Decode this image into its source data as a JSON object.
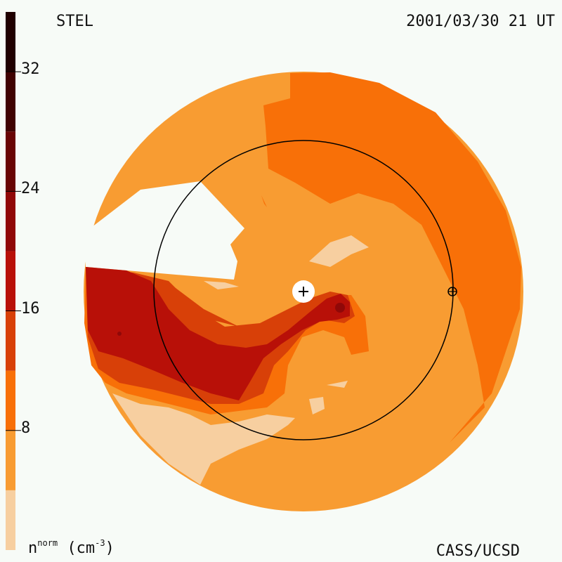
{
  "header": {
    "left_label": "STEL",
    "right_label": "2001/03/30 21 UT"
  },
  "footer": {
    "credit": "CASS/UCSD"
  },
  "colorbar": {
    "quantity": "n",
    "superscript": "norm",
    "unit_open": "(cm",
    "unit_exp": "-3",
    "unit_close": ")",
    "ticks": [
      "32",
      "24",
      "16",
      "8"
    ],
    "tick_values": [
      32,
      24,
      16,
      8
    ],
    "levels": [
      {
        "from": 0,
        "to": 4,
        "color": "#f7cfa0"
      },
      {
        "from": 4,
        "to": 8,
        "color": "#f89c32"
      },
      {
        "from": 8,
        "to": 12,
        "color": "#f87008"
      },
      {
        "from": 12,
        "to": 16,
        "color": "#d84008"
      },
      {
        "from": 16,
        "to": 20,
        "color": "#b81008"
      },
      {
        "from": 20,
        "to": 24,
        "color": "#900808"
      },
      {
        "from": 24,
        "to": 28,
        "color": "#680404"
      },
      {
        "from": 28,
        "to": 32,
        "color": "#400202"
      },
      {
        "from": 32,
        "to": 36,
        "color": "#200000"
      }
    ],
    "range": [
      0,
      36
    ]
  },
  "map": {
    "sun_marker": "sun-center-icon",
    "earth_marker": "earth-icon"
  }
}
